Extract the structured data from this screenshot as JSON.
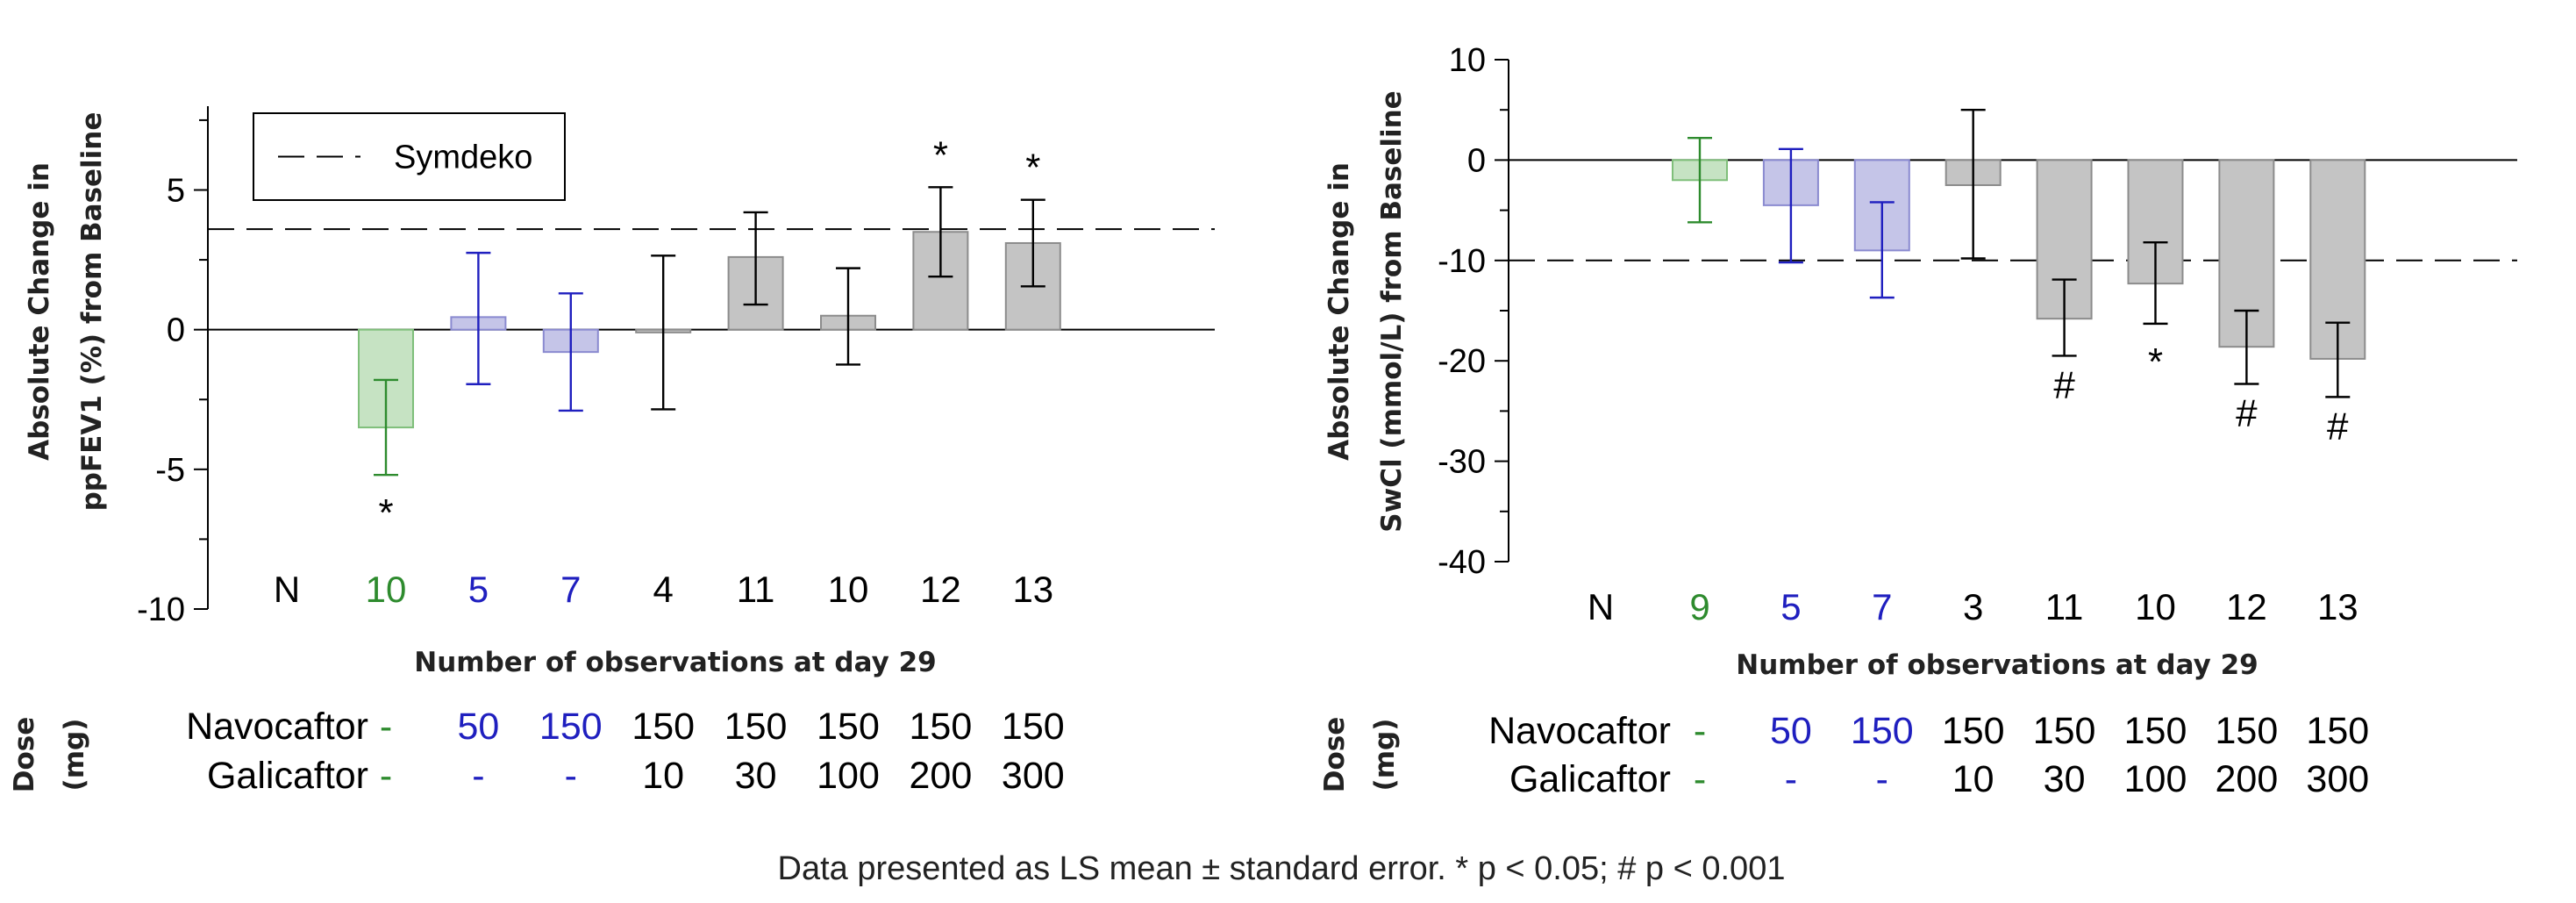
{
  "colors": {
    "green": "#2e8b2e",
    "green_fill": "#c6e3c3",
    "green_stroke": "#7fbf7a",
    "blue": "#1f1fbf",
    "blue_fill": "#c5c5e8",
    "blue_stroke": "#8a8ad0",
    "gray_fill": "#c4c4c4",
    "gray_stroke": "#8c8c8c",
    "black": "#000000"
  },
  "chart_data": [
    {
      "type": "bar",
      "ylabel_lines": [
        "Absolute Change in",
        "ppFEV1 (%) from Baseline"
      ],
      "xlabel": "Number of observations at day 29",
      "ylim": [
        -10,
        8
      ],
      "yticks": [
        -10,
        -5,
        0,
        5
      ],
      "ytick_labels": [
        "-10",
        "-5",
        "0",
        "5"
      ],
      "n_header": "N",
      "reference_line": {
        "label": "Symdeko",
        "value": 3.6
      },
      "legend": {
        "label": "Symdeko",
        "placement": "top-left"
      },
      "groups": [
        "green",
        "blue",
        "blue",
        "gray",
        "gray",
        "gray",
        "gray",
        "gray"
      ],
      "n_values": [
        "10",
        "5",
        "7",
        "4",
        "11",
        "10",
        "12",
        "13"
      ],
      "values": [
        -3.5,
        0.45,
        -0.8,
        -0.1,
        2.6,
        0.5,
        3.5,
        3.1
      ],
      "err_low": [
        -5.2,
        -1.95,
        -2.9,
        -2.85,
        0.9,
        -1.25,
        1.9,
        1.55
      ],
      "err_high": [
        -1.8,
        2.75,
        1.3,
        2.65,
        4.2,
        2.2,
        5.1,
        4.65
      ],
      "sig_marks": [
        "*",
        "",
        "",
        "",
        "",
        "",
        "*",
        "*"
      ],
      "sig_side": [
        "below",
        "",
        "",
        "",
        "",
        "",
        "above",
        "above"
      ],
      "dose": {
        "title_lines": [
          "Dose",
          "(mg)"
        ],
        "navocaftor_label": "Navocaftor",
        "galicaftor_label": "Galicaftor",
        "navocaftor": [
          "-",
          "50",
          "150",
          "150",
          "150",
          "150",
          "150",
          "150"
        ],
        "galicaftor": [
          "-",
          "-",
          "-",
          "10",
          "30",
          "100",
          "200",
          "300"
        ]
      }
    },
    {
      "type": "bar",
      "ylabel_lines": [
        "Absolute Change in",
        "SwCl (mmol/L) from Baseline"
      ],
      "xlabel": "Number of observations at day 29",
      "ylim": [
        -40,
        10
      ],
      "yticks": [
        -40,
        -30,
        -20,
        -10,
        0,
        10
      ],
      "ytick_labels": [
        "-40",
        "-30",
        "-20",
        "-10",
        "0",
        "10"
      ],
      "n_header": "N",
      "reference_line": {
        "label": "Symdeko",
        "value": -10
      },
      "groups": [
        "green",
        "blue",
        "blue",
        "gray",
        "gray",
        "gray",
        "gray",
        "gray"
      ],
      "n_values": [
        "9",
        "5",
        "7",
        "3",
        "11",
        "10",
        "12",
        "13"
      ],
      "values": [
        -2,
        -4.5,
        -9,
        -2.5,
        -15.8,
        -12.3,
        -18.6,
        -19.8
      ],
      "err_low": [
        -6.2,
        -10.2,
        -13.7,
        -9.8,
        -19.5,
        -16.3,
        -22.3,
        -23.6
      ],
      "err_high": [
        2.2,
        1.1,
        -4.2,
        5,
        -11.9,
        -8.2,
        -15,
        -16.2
      ],
      "sig_marks": [
        "",
        "",
        "",
        "",
        "#",
        "*",
        "#",
        "#"
      ],
      "sig_side": [
        "",
        "",
        "",
        "",
        "below",
        "below",
        "below",
        "below"
      ],
      "dose": {
        "title_lines": [
          "Dose",
          "(mg)"
        ],
        "navocaftor_label": "Navocaftor",
        "galicaftor_label": "Galicaftor",
        "navocaftor": [
          "-",
          "50",
          "150",
          "150",
          "150",
          "150",
          "150",
          "150"
        ],
        "galicaftor": [
          "-",
          "-",
          "-",
          "10",
          "30",
          "100",
          "200",
          "300"
        ]
      }
    }
  ],
  "footnote": "Data presented as LS mean ± standard error. * p < 0.05; # p < 0.001"
}
